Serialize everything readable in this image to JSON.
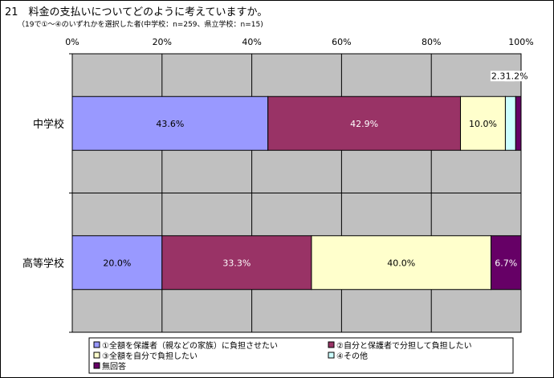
{
  "title": "21　料金の支払いについてどのように考えていますか。",
  "subtitle": "（19で①～④のいずれかを選択した者(中学校：n=259、県立学校：n=15)",
  "colors": {
    "plot_bg": "#c0c0c0",
    "grid": "#000000",
    "series": [
      "#9999ff",
      "#993366",
      "#ffffcc",
      "#ccffff",
      "#660066"
    ]
  },
  "chart_data": {
    "type": "bar",
    "orientation": "horizontal",
    "stacked": true,
    "percent": true,
    "categories": [
      "中学校",
      "高等学校"
    ],
    "xlim": [
      0,
      100
    ],
    "x_ticks": [
      "0%",
      "20%",
      "40%",
      "60%",
      "80%",
      "100%"
    ],
    "grid": true,
    "legend_position": "bottom",
    "series": [
      {
        "name": "①全額を保護者（親などの家族）に負担させたい",
        "values": [
          43.6,
          20.0
        ],
        "labels": [
          "43.6%",
          "20.0%"
        ]
      },
      {
        "name": "②自分と保護者で分担して負担したい",
        "values": [
          42.9,
          33.3
        ],
        "labels": [
          "42.9%",
          "33.3%"
        ]
      },
      {
        "name": "③全額を自分で負担したい",
        "values": [
          10.0,
          40.0
        ],
        "labels": [
          "10.0%",
          "40.0%"
        ]
      },
      {
        "name": "④その他",
        "values": [
          2.3,
          0
        ],
        "labels": [
          "2.3%",
          ""
        ]
      },
      {
        "name": "無回答",
        "values": [
          1.2,
          6.7
        ],
        "labels": [
          "1.2%",
          "6.7%"
        ]
      }
    ]
  }
}
